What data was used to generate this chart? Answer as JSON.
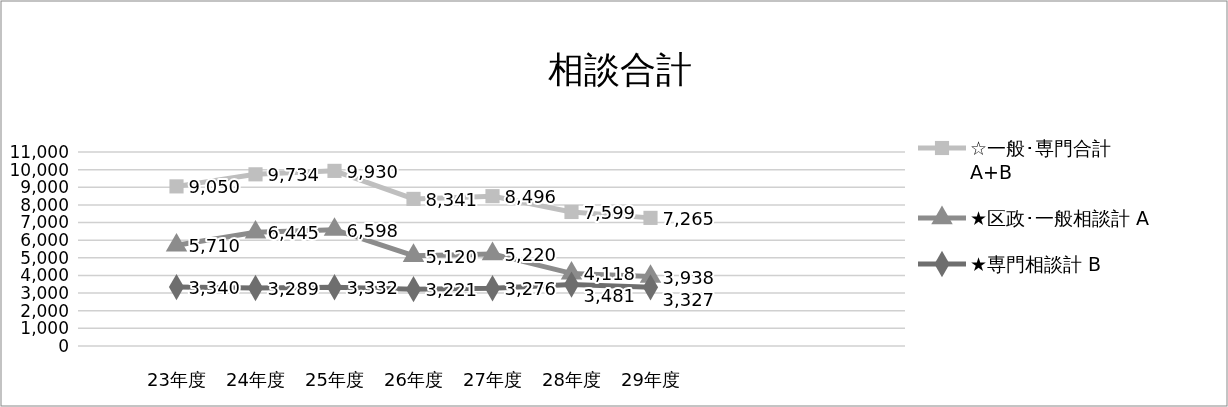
{
  "chart_data": {
    "type": "line",
    "title": "相談合計",
    "categories": [
      "23年度",
      "24年度",
      "25年度",
      "26年度",
      "27年度",
      "28年度",
      "29年度"
    ],
    "series": [
      {
        "name": "☆一般･専門合計 A+B",
        "color": "#bfbfbf",
        "marker": "square",
        "values": [
          9050,
          9734,
          9930,
          8341,
          8496,
          7599,
          7265
        ],
        "value_labels": [
          "9,050",
          "9,734",
          "9,930",
          "8,341",
          "8,496",
          "7,599",
          "7,265"
        ]
      },
      {
        "name": "★区政･一般相談計 A",
        "color": "#8c8c8c",
        "marker": "triangle",
        "values": [
          5710,
          6445,
          6598,
          5120,
          5220,
          4118,
          3938
        ],
        "value_labels": [
          "5,710",
          "6,445",
          "6,598",
          "5,120",
          "5,220",
          "4,118",
          "3,938"
        ]
      },
      {
        "name": "★専門相談計 B",
        "color": "#6e6e6e",
        "marker": "diamond",
        "values": [
          3340,
          3289,
          3332,
          3221,
          3276,
          3481,
          3327
        ],
        "value_labels": [
          "3,340",
          "3,289",
          "3,332",
          "3,221",
          "3,276",
          "3,481",
          "3,327"
        ]
      }
    ],
    "ylim": [
      0,
      11000
    ],
    "yticks": [
      {
        "value": 0,
        "label": "0"
      },
      {
        "value": 1000,
        "label": "1,000"
      },
      {
        "value": 2000,
        "label": "2,000"
      },
      {
        "value": 3000,
        "label": "3,000"
      },
      {
        "value": 4000,
        "label": "4,000"
      },
      {
        "value": 5000,
        "label": "5,000"
      },
      {
        "value": 6000,
        "label": "6,000"
      },
      {
        "value": 7000,
        "label": "7,000"
      },
      {
        "value": 8000,
        "label": "8,000"
      },
      {
        "value": 9000,
        "label": "9,000"
      },
      {
        "value": 10000,
        "label": "10,000"
      },
      {
        "value": 11000,
        "label": "11,000"
      }
    ],
    "grid": "y",
    "legend": "right",
    "line_style": "solid"
  }
}
